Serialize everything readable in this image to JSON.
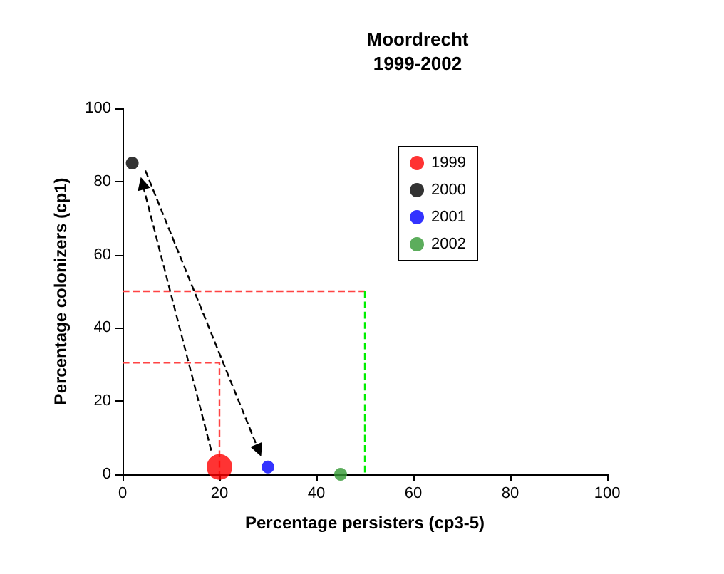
{
  "chart_data": {
    "type": "scatter",
    "title": "Moordrecht\n1999-2002",
    "xlabel": "Percentage persisters (cp3-5)",
    "ylabel": "Percentage colonizers (cp1)",
    "xlim": [
      0,
      100
    ],
    "ylim": [
      0,
      100
    ],
    "xticks": [
      0,
      20,
      40,
      60,
      80,
      100
    ],
    "yticks": [
      0,
      20,
      40,
      60,
      80,
      100
    ],
    "grid": false,
    "legend": "top right",
    "marker": "circle",
    "series": [
      {
        "name": "1999",
        "color": "#ff0000",
        "x": [
          20
        ],
        "values": [
          2
        ]
      },
      {
        "name": "2000",
        "color": "#000000",
        "x": [
          2
        ],
        "values": [
          85
        ]
      },
      {
        "name": "2001",
        "color": "#0000ff",
        "x": [
          30
        ],
        "values": [
          2
        ]
      },
      {
        "name": "2002",
        "color": "#339933",
        "x": [
          45
        ],
        "values": [
          0
        ]
      },
      {
        "type": "line",
        "color": "#ff4444",
        "line_style": "dashed",
        "marker": "none",
        "x": [
          0,
          50
        ],
        "values": [
          50,
          50
        ]
      },
      {
        "type": "line",
        "color": "#00ee00",
        "line_style": "dashed",
        "marker": "none",
        "x": [
          50,
          50
        ],
        "values": [
          50,
          0
        ]
      },
      {
        "type": "line",
        "color": "#ff4444",
        "line_style": "dashed",
        "marker": "none",
        "x": [
          0,
          20,
          20
        ],
        "values": [
          30.5,
          30.5,
          0
        ]
      },
      {
        "type": "line",
        "color": "#000000",
        "line_style": "dashed",
        "marker": "triangle",
        "x": [
          18.3,
          4.1
        ],
        "values": [
          6.5,
          79.5
        ]
      },
      {
        "type": "line",
        "color": "#000000",
        "line_style": "dashed",
        "marker": "triangle",
        "x": [
          4.7,
          28.1
        ],
        "values": [
          83,
          6.5
        ]
      }
    ]
  }
}
